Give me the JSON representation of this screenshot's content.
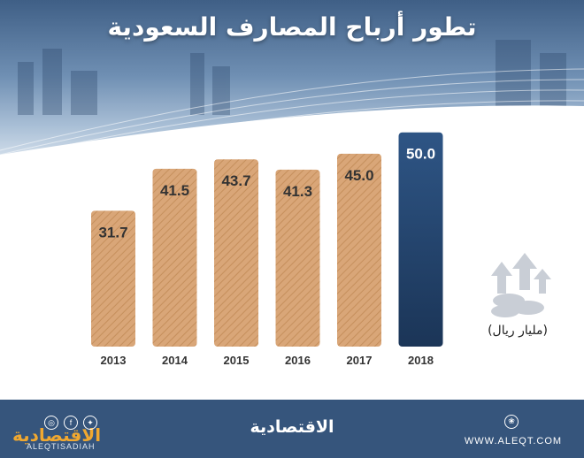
{
  "title": "تطور أرباح المصارف السعودية",
  "unit_label": "(مليار ريال)",
  "chart_data": {
    "type": "bar",
    "title": "تطور أرباح المصارف السعودية",
    "ylabel": "(مليار ريال)",
    "categories": [
      "2013",
      "2014",
      "2015",
      "2016",
      "2017",
      "2018"
    ],
    "values": [
      31.7,
      41.5,
      43.7,
      41.3,
      45.0,
      50.0
    ],
    "value_labels": [
      "31.7",
      "41.5",
      "43.7",
      "41.3",
      "45.0",
      "50.0"
    ],
    "highlight_index": 5,
    "ylim": [
      0,
      52
    ],
    "grid": false,
    "colors": {
      "bar": "#d9a678",
      "bar_stripe": "#c58f5c",
      "highlight_top": "#2e5585",
      "highlight_bottom": "#1b3557"
    }
  },
  "footer": {
    "brand": "الاقتصادية",
    "brand_small": "الاقتصادية",
    "handle": "ALEQTISADIAH",
    "website": "WWW.ALEQT.COM",
    "social_icons": [
      "instagram-icon",
      "facebook-icon",
      "twitter-icon"
    ],
    "colors": {
      "background": "#36557c",
      "brand_accent": "#f0a830"
    }
  },
  "decor_icon": "coins-rising-arrows-icon"
}
